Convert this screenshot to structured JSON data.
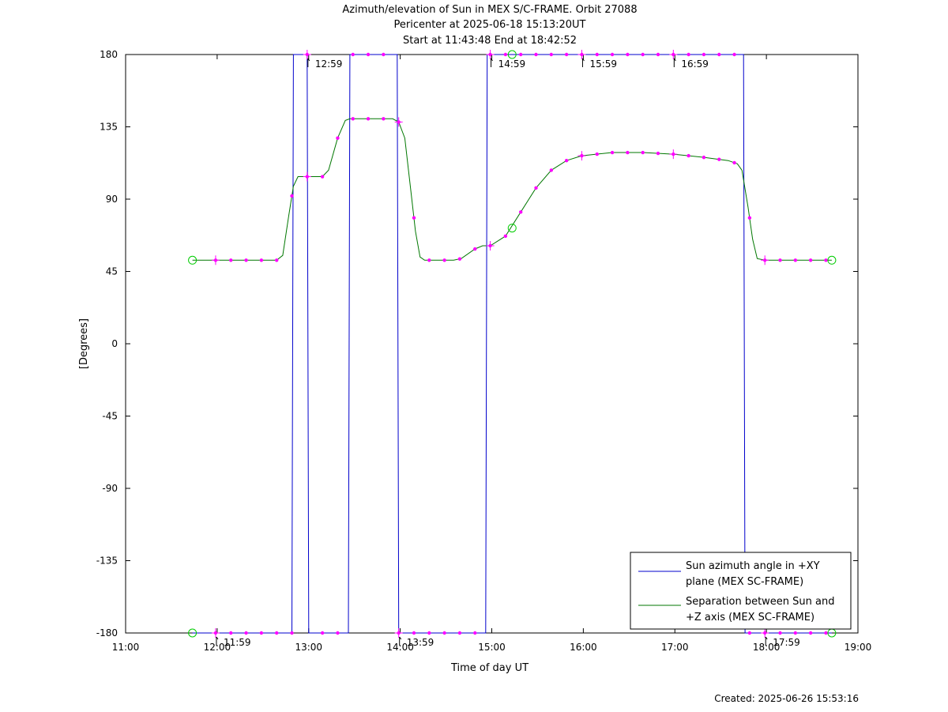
{
  "chart_data": {
    "type": "line",
    "title_lines": [
      "Azimuth/elevation of Sun in MEX S/C-FRAME.  Orbit 27088",
      "Pericenter at 2025-06-18 15:13:20UT",
      "Start at 11:43:48 End at 18:42:52"
    ],
    "xlabel": "Time of day UT",
    "ylabel": "[Degrees]",
    "xlim": [
      "11:00",
      "19:00"
    ],
    "ylim": [
      -180,
      180
    ],
    "x_ticks": [
      "11:00",
      "12:00",
      "13:00",
      "14:00",
      "15:00",
      "16:00",
      "17:00",
      "18:00",
      "19:00"
    ],
    "y_ticks": [
      180,
      135,
      90,
      45,
      0,
      -45,
      -90,
      -135,
      -180
    ],
    "grid": false,
    "legend_position": "bottom-right",
    "colors": {
      "azimuth": "#0000cc",
      "separation": "#007700",
      "markers": "#ff00ff",
      "endpoints": "#00cc00"
    },
    "hour_markers": [
      {
        "label": "11:59",
        "x": "11:59",
        "y": -180
      },
      {
        "label": "12:59",
        "x": "12:59",
        "y": 180
      },
      {
        "label": "13:59",
        "x": "13:59",
        "y": -180
      },
      {
        "label": "14:59",
        "x": "14:59",
        "y": 180
      },
      {
        "label": "15:59",
        "x": "15:59",
        "y": 180
      },
      {
        "label": "16:59",
        "x": "16:59",
        "y": 180
      },
      {
        "label": "17:59",
        "x": "17:59",
        "y": -180
      }
    ],
    "series": [
      {
        "name": "Sun azimuth angle in +XY plane (MEX SC-FRAME)",
        "legend_lines": [
          "Sun azimuth angle in +XY",
          "plane (MEX SC-FRAME)"
        ],
        "points": [
          [
            "11:43:48",
            -180
          ],
          [
            "12:49",
            -180
          ],
          [
            "12:50",
            180
          ],
          [
            "12:58",
            180
          ],
          [
            "12:59",
            180
          ],
          [
            "13:00",
            -180
          ],
          [
            "13:26",
            -180
          ],
          [
            "13:27",
            180
          ],
          [
            "13:58",
            180
          ],
          [
            "13:59",
            -180
          ],
          [
            "14:56",
            -180
          ],
          [
            "14:57",
            180
          ],
          [
            "17:45",
            180
          ],
          [
            "17:46",
            -180
          ],
          [
            "18:42:52",
            -180
          ]
        ],
        "dot_times": [
          "11:59",
          "12:09",
          "12:19",
          "12:29",
          "12:39",
          "12:49",
          "12:59",
          "13:09",
          "13:19",
          "13:29",
          "13:39",
          "13:49",
          "13:59",
          "14:09",
          "14:19",
          "14:29",
          "14:39",
          "14:49",
          "14:59",
          "15:09",
          "15:19",
          "15:29",
          "15:39",
          "15:49",
          "15:59",
          "16:09",
          "16:19",
          "16:29",
          "16:39",
          "16:49",
          "16:59",
          "17:09",
          "17:19",
          "17:29",
          "17:39",
          "17:49",
          "17:59",
          "18:09",
          "18:19",
          "18:29",
          "18:39"
        ]
      },
      {
        "name": "Separation between Sun and +Z axis (MEX SC-FRAME)",
        "legend_lines": [
          "Separation between Sun and",
          "+Z axis (MEX SC-FRAME)"
        ],
        "points": [
          [
            "11:43:48",
            52
          ],
          [
            "12:39",
            52
          ],
          [
            "12:43",
            55
          ],
          [
            "12:47",
            80
          ],
          [
            "12:50",
            98
          ],
          [
            "12:53",
            104
          ],
          [
            "13:09",
            104
          ],
          [
            "13:13",
            108
          ],
          [
            "13:19",
            128
          ],
          [
            "13:24",
            139
          ],
          [
            "13:27",
            140
          ],
          [
            "13:55",
            140
          ],
          [
            "13:59",
            138
          ],
          [
            "14:03",
            128
          ],
          [
            "14:07",
            95
          ],
          [
            "14:10",
            70
          ],
          [
            "14:13",
            54
          ],
          [
            "14:16",
            52
          ],
          [
            "14:35",
            52
          ],
          [
            "14:40",
            53
          ],
          [
            "14:49",
            59
          ],
          [
            "14:54",
            61
          ],
          [
            "14:59",
            61
          ],
          [
            "15:09",
            67
          ],
          [
            "15:19",
            82
          ],
          [
            "15:29",
            97
          ],
          [
            "15:39",
            108
          ],
          [
            "15:49",
            114
          ],
          [
            "15:59",
            117
          ],
          [
            "16:19",
            119
          ],
          [
            "16:39",
            119
          ],
          [
            "16:59",
            118
          ],
          [
            "17:19",
            116
          ],
          [
            "17:35",
            114
          ],
          [
            "17:41",
            112
          ],
          [
            "17:44",
            108
          ],
          [
            "17:48",
            85
          ],
          [
            "17:51",
            65
          ],
          [
            "17:54",
            53
          ],
          [
            "17:59",
            52
          ],
          [
            "18:42:52",
            52
          ]
        ],
        "dot_times": [
          "11:59",
          "12:09",
          "12:19",
          "12:29",
          "12:39",
          "12:49",
          "12:59",
          "13:09",
          "13:19",
          "13:29",
          "13:39",
          "13:49",
          "13:59",
          "14:09",
          "14:19",
          "14:29",
          "14:39",
          "14:49",
          "14:59",
          "15:09",
          "15:19",
          "15:29",
          "15:39",
          "15:49",
          "15:59",
          "16:09",
          "16:19",
          "16:29",
          "16:39",
          "16:49",
          "16:59",
          "17:09",
          "17:19",
          "17:29",
          "17:39",
          "17:49",
          "17:59",
          "18:09",
          "18:19",
          "18:29",
          "18:39"
        ],
        "highlight": {
          "time": "15:13:20",
          "value": 72
        }
      }
    ]
  },
  "created": "Created: 2025-06-26 15:53:16"
}
